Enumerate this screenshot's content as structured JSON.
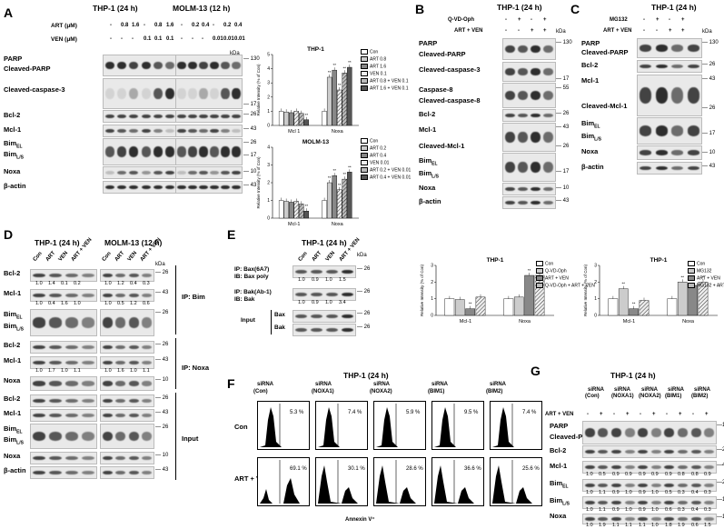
{
  "panels": {
    "A": {
      "letter": "A",
      "left_title": "THP-1 (24 h)",
      "right_title": "MOLM-13 (12 h)",
      "row_labels": [
        "ART (μM)",
        "VEN (μM)"
      ],
      "left_art": [
        "-",
        "0.8",
        "1.6",
        "-",
        "0.8",
        "1.6"
      ],
      "left_ven": [
        "-",
        "-",
        "-",
        "0.1",
        "0.1",
        "0.1"
      ],
      "right_art": [
        "-",
        "0.2",
        "0.4",
        "-",
        "0.2",
        "0.4"
      ],
      "right_ven": [
        "-",
        "-",
        "-",
        "0.01",
        "0.01",
        "0.01"
      ],
      "kda": "kDa",
      "blot_labels": [
        "PARP",
        "Cleaved-PARP",
        "Cleaved-caspase-3",
        "Bcl-2",
        "Mcl-1",
        "BimEL",
        "BimL/S",
        "Noxa",
        "β-actin"
      ],
      "markers": [
        "130",
        "17",
        "26",
        "43",
        "26",
        "17",
        "10",
        "43"
      ],
      "chart1_title": "THP-1",
      "chart2_title": "MOLM-13",
      "ylabel": "Relative Intensity (% of Con)",
      "xcats": [
        "Mcl 1",
        "Noxa"
      ],
      "xcats2": [
        "Mcl-1",
        "Noxa"
      ],
      "legend1": [
        "Con",
        "ART 0.8",
        "ART 1.6",
        "VEN 0.1",
        "ART 0.8 + VEN 0.1",
        "ART 1.6 + VEN 0.1"
      ],
      "legend2": [
        "Con",
        "ART 0.2",
        "ART 0.4",
        "VEN 0.01",
        "ART 0.2 + VEN 0.01",
        "ART 0.4 + VEN 0.01"
      ],
      "yticks": [
        "0",
        "1",
        "2",
        "3",
        "4",
        "5"
      ],
      "yticks2": [
        "0",
        "1",
        "2",
        "3",
        "4"
      ],
      "stars": "**",
      "stars3": "***"
    },
    "B": {
      "letter": "B",
      "title": "THP-1 (24 h)",
      "row_labels": [
        "Q-VD-Oph",
        "ART + VEN"
      ],
      "row1": [
        "-",
        "+",
        "-",
        "+"
      ],
      "row2": [
        "-",
        "-",
        "+",
        "+"
      ],
      "blot_labels": [
        "PARP",
        "Cleaved-PARP",
        "Cleaved-caspase-3",
        "Caspase-8",
        "Cleaved-caspase-8",
        "Bcl-2",
        "Mcl-1",
        "Cleaved-Mcl-1",
        "BimEL",
        "BimL/S",
        "Noxa",
        "β-actin"
      ],
      "markers": [
        "130",
        "17",
        "55",
        "26",
        "43",
        "26",
        "17",
        "10",
        "43"
      ],
      "chart_title": "THP-1",
      "legend": [
        "Con",
        "Q-VD-Oph",
        "ART + VEN",
        "Q-VD-Oph + ART + VEN"
      ],
      "sig": "###",
      "sig2": "##"
    },
    "C": {
      "letter": "C",
      "title": "THP-1 (24 h)",
      "row_labels": [
        "MG132",
        "ART + VEN"
      ],
      "row1": [
        "-",
        "+",
        "-",
        "+"
      ],
      "row2": [
        "-",
        "-",
        "+",
        "+"
      ],
      "blot_labels": [
        "PARP",
        "Cleaved-PARP",
        "Bcl-2",
        "Mcl-1",
        "Cleaved-Mcl-1",
        "BimEL",
        "BimL/S",
        "Noxa",
        "β-actin"
      ],
      "markers": [
        "130",
        "26",
        "43",
        "26",
        "17",
        "10",
        "43"
      ],
      "chart_title": "THP-1",
      "legend": [
        "Con",
        "MG132",
        "ART + VEN",
        "MG132 + ART + VEN"
      ],
      "sig": "##"
    },
    "D": {
      "letter": "D",
      "left_title": "THP-1 (24 h)",
      "right_title": "MOLM-13 (12 h)",
      "lanes": [
        "Con",
        "ART",
        "VEN",
        "ART + VEN"
      ],
      "blot_labels": [
        "Bcl-2",
        "Mcl-1",
        "BimEL",
        "BimL/S",
        "Bcl-2",
        "Mcl-1",
        "Noxa",
        "Bcl-2",
        "Mcl-1",
        "BimEL",
        "BimL/S",
        "Noxa",
        "β-actin"
      ],
      "ip_labels": [
        "IP: Bim",
        "IP: Noxa",
        "Input"
      ],
      "nums_bcl2_l": [
        "1.0",
        "1.4",
        "0.1",
        "0.2"
      ],
      "nums_bcl2_r": [
        "1.0",
        "1.2",
        "0.4",
        "0.3"
      ],
      "nums_mcl1_l": [
        "1.0",
        "0.4",
        "1.6",
        "1.0"
      ],
      "nums_mcl1_r": [
        "1.0",
        "0.5",
        "1.2",
        "0.6"
      ],
      "nums_noxa_l": [
        "1.0",
        "1.7",
        "1.0",
        "1.1"
      ],
      "nums_noxa_r": [
        "1.0",
        "1.6",
        "1.0",
        "1.1"
      ],
      "markers": [
        "26",
        "43",
        "26",
        "17",
        "26",
        "43",
        "10",
        "26",
        "43",
        "26",
        "17",
        "10",
        "43"
      ]
    },
    "E": {
      "letter": "E",
      "title": "THP-1 (24 h)",
      "lanes": [
        "Con",
        "ART",
        "VEN",
        "ART + VEN"
      ],
      "labels": [
        "IP: Bax(6A7)",
        "IB: Bax poly",
        "IP: Bak(Ab-1)",
        "IB: Bak",
        "Input",
        "Bax",
        "Bak"
      ],
      "nums1": [
        "1.0",
        "0.9",
        "1.0",
        "1.5"
      ],
      "nums2": [
        "1.0",
        "0.9",
        "1.0",
        "3.4"
      ],
      "markers": [
        "26",
        "26",
        "26",
        "26"
      ]
    },
    "F": {
      "letter": "F",
      "title": "THP-1 (24 h)",
      "cols": [
        "siRNA\n(Con)",
        "siRNA\n(NOXA1)",
        "siRNA\n(NOXA2)",
        "siRNA\n(BIM1)",
        "siRNA\n(BIM2)"
      ],
      "col_line1": [
        "siRNA",
        "siRNA",
        "siRNA",
        "siRNA",
        "siRNA"
      ],
      "col_line2": [
        "(Con)",
        "(NOXA1)",
        "(NOXA2)",
        "(BIM1)",
        "(BIM2)"
      ],
      "rows": [
        "Con",
        "ART + VEN"
      ],
      "con_pct": [
        "5.3 %",
        "7.4 %",
        "5.9 %",
        "9.5 %",
        "7.4 %"
      ],
      "trt_pct": [
        "69.1 %",
        "30.1 %",
        "28.6 %",
        "36.6 %",
        "25.6 %"
      ],
      "xlabel": "Annexin V⁺"
    },
    "G": {
      "letter": "G",
      "title": "THP-1 (24 h)",
      "cols_line1": [
        "siRNA",
        "siRNA",
        "siRNA",
        "siRNA",
        "siRNA"
      ],
      "cols_line2": [
        "(Con)",
        "(NOXA1)",
        "(NOXA2)",
        "(BIM1)",
        "(BIM2)"
      ],
      "row_label": "ART + VEN",
      "pm": [
        "-",
        "+",
        "-",
        "+",
        "-",
        "+",
        "-",
        "+",
        "-",
        "+"
      ],
      "blot_labels": [
        "PARP",
        "Cleaved-PARP",
        "Bcl-2",
        "Mcl-1",
        "BimEL",
        "BimL/S",
        "Noxa",
        "β-actin"
      ],
      "nums_mcl1": [
        "1.0",
        "0.5",
        "0.9",
        "0.9",
        "0.9",
        "0.9",
        "0.9",
        "0.8",
        "0.8",
        "0.9"
      ],
      "nums_bimel": [
        "1.0",
        "1.1",
        "0.9",
        "1.0",
        "0.9",
        "1.0",
        "0.5",
        "0.3",
        "0.4",
        "0.3"
      ],
      "nums_bimls": [
        "1.0",
        "1.1",
        "0.9",
        "1.0",
        "0.9",
        "1.0",
        "0.6",
        "0.3",
        "0.4",
        "0.3"
      ],
      "nums_noxa": [
        "1.0",
        "1.9",
        "1.1",
        "1.1",
        "1.1",
        "1.0",
        "1.8",
        "1.9",
        "0.6",
        "1.5"
      ],
      "markers": [
        "130",
        "26",
        "43",
        "26",
        "17",
        "10",
        "43"
      ]
    }
  },
  "chart_data": [
    {
      "type": "bar",
      "title": "THP-1",
      "ylabel": "Relative Intensity (% of Con)",
      "categories": [
        "Mcl 1",
        "Noxa"
      ],
      "ylim": [
        0,
        5
      ],
      "series": [
        {
          "name": "Con",
          "values": [
            1.0,
            1.0
          ]
        },
        {
          "name": "ART 0.8",
          "values": [
            0.95,
            3.4
          ]
        },
        {
          "name": "ART 1.6",
          "values": [
            0.9,
            3.9
          ]
        },
        {
          "name": "VEN 0.1",
          "values": [
            1.0,
            2.5
          ]
        },
        {
          "name": "ART 0.8 + VEN 0.1",
          "values": [
            0.85,
            3.7
          ]
        },
        {
          "name": "ART 1.6 + VEN 0.1",
          "values": [
            0.4,
            4.1
          ]
        }
      ]
    },
    {
      "type": "bar",
      "title": "MOLM-13",
      "ylabel": "Relative Intensity (% of Con)",
      "categories": [
        "Mcl-1",
        "Noxa"
      ],
      "ylim": [
        0,
        4
      ],
      "series": [
        {
          "name": "Con",
          "values": [
            1.0,
            1.0
          ]
        },
        {
          "name": "ART 0.2",
          "values": [
            0.95,
            2.0
          ]
        },
        {
          "name": "ART 0.4",
          "values": [
            0.9,
            2.4
          ]
        },
        {
          "name": "VEN 0.01",
          "values": [
            0.95,
            1.6
          ]
        },
        {
          "name": "ART 0.2 + VEN 0.01",
          "values": [
            0.8,
            2.2
          ]
        },
        {
          "name": "ART 0.4 + VEN 0.01",
          "values": [
            0.4,
            2.6
          ]
        }
      ]
    },
    {
      "type": "bar",
      "title": "THP-1",
      "ylabel": "Relative Intensity (% of Con)",
      "categories": [
        "Mcl-1",
        "Noxa"
      ],
      "ylim": [
        0,
        3
      ],
      "series": [
        {
          "name": "Con",
          "values": [
            1.0,
            1.0
          ]
        },
        {
          "name": "Q-VD-Oph",
          "values": [
            0.95,
            1.1
          ]
        },
        {
          "name": "ART + VEN",
          "values": [
            0.4,
            2.4
          ]
        },
        {
          "name": "Q-VD-Oph + ART + VEN",
          "values": [
            1.1,
            2.4
          ]
        }
      ]
    },
    {
      "type": "bar",
      "title": "THP-1",
      "ylabel": "Relative Intensity (% of Con)",
      "categories": [
        "Mcl-1",
        "Noxa"
      ],
      "ylim": [
        0,
        3
      ],
      "series": [
        {
          "name": "Con",
          "values": [
            1.0,
            1.0
          ]
        },
        {
          "name": "MG132",
          "values": [
            1.6,
            2.0
          ]
        },
        {
          "name": "ART + VEN",
          "values": [
            0.4,
            1.8
          ]
        },
        {
          "name": "MG132 + ART + VEN",
          "values": [
            0.9,
            2.0
          ]
        }
      ]
    }
  ]
}
